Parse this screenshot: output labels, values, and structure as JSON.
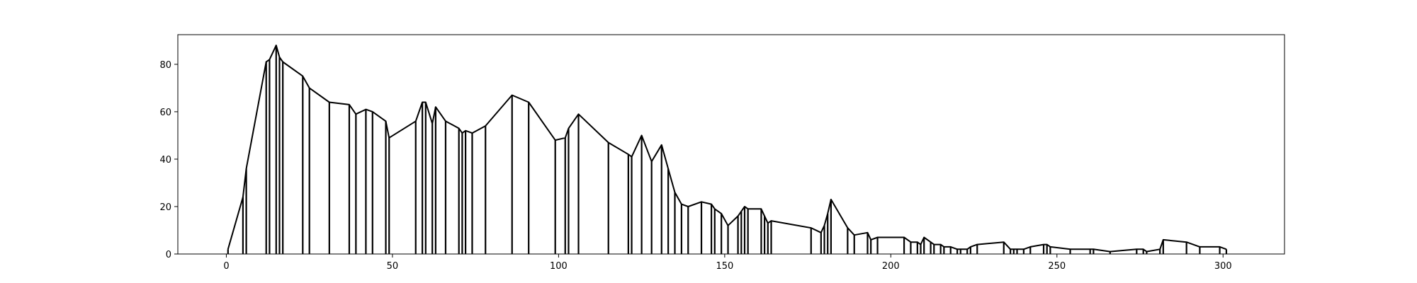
{
  "chart_data": {
    "type": "line",
    "title": "",
    "xlabel": "",
    "ylabel": "",
    "xlim": [
      -14.6,
      318.5
    ],
    "ylim": [
      0,
      92.5
    ],
    "x_ticks": [
      0,
      50,
      100,
      150,
      200,
      250,
      300
    ],
    "y_ticks": [
      0,
      20,
      40,
      60,
      80
    ],
    "grid": false,
    "legend": "none",
    "colors": {
      "line": "#000000",
      "background": "#ffffff",
      "frame": "#000000"
    },
    "series": [
      {
        "style": "stems-with-envelope",
        "x": [
          0.5,
          5,
          6,
          12,
          13,
          15,
          16,
          17,
          23,
          25,
          31,
          37,
          39,
          42,
          44,
          48,
          49,
          57,
          59,
          60,
          62,
          63,
          66,
          70,
          71,
          72,
          74,
          78,
          86,
          91,
          99,
          102,
          103,
          106,
          115,
          121,
          122,
          125,
          128,
          131,
          133,
          135,
          137,
          139,
          143,
          146,
          147,
          149,
          151,
          154,
          155,
          156,
          157,
          161,
          162,
          163,
          164,
          176,
          179,
          180,
          181,
          182,
          187,
          189,
          193,
          194,
          196,
          204,
          206,
          208,
          209,
          210,
          212,
          213,
          215,
          216,
          218,
          220,
          221,
          223,
          224,
          226,
          234,
          236,
          237,
          238,
          240,
          242,
          246,
          247,
          248,
          254,
          260,
          261,
          266,
          274,
          276,
          277,
          281,
          282,
          289,
          293,
          299,
          301
        ],
        "y": [
          2,
          24,
          36,
          81,
          82,
          88,
          83,
          81,
          75,
          70,
          64,
          63,
          59,
          61,
          60,
          56,
          49,
          56,
          64,
          64,
          55,
          62,
          56,
          53,
          51,
          52,
          51,
          54,
          67,
          64,
          48,
          49,
          53,
          59,
          47,
          42,
          41,
          50,
          39,
          46,
          36,
          26,
          21,
          20,
          22,
          21,
          19,
          17,
          12,
          16,
          18,
          20,
          19,
          19,
          16,
          13,
          14,
          11,
          9,
          12,
          17,
          23,
          11,
          8,
          9,
          6,
          7,
          7,
          5,
          5,
          4,
          7,
          5,
          4,
          4,
          3,
          3,
          2,
          2,
          2,
          3,
          4,
          5,
          2,
          2,
          2,
          2,
          3,
          4,
          4,
          3,
          2,
          2,
          2,
          1,
          2,
          2,
          1,
          2,
          6,
          5,
          3,
          3,
          2
        ]
      }
    ]
  }
}
